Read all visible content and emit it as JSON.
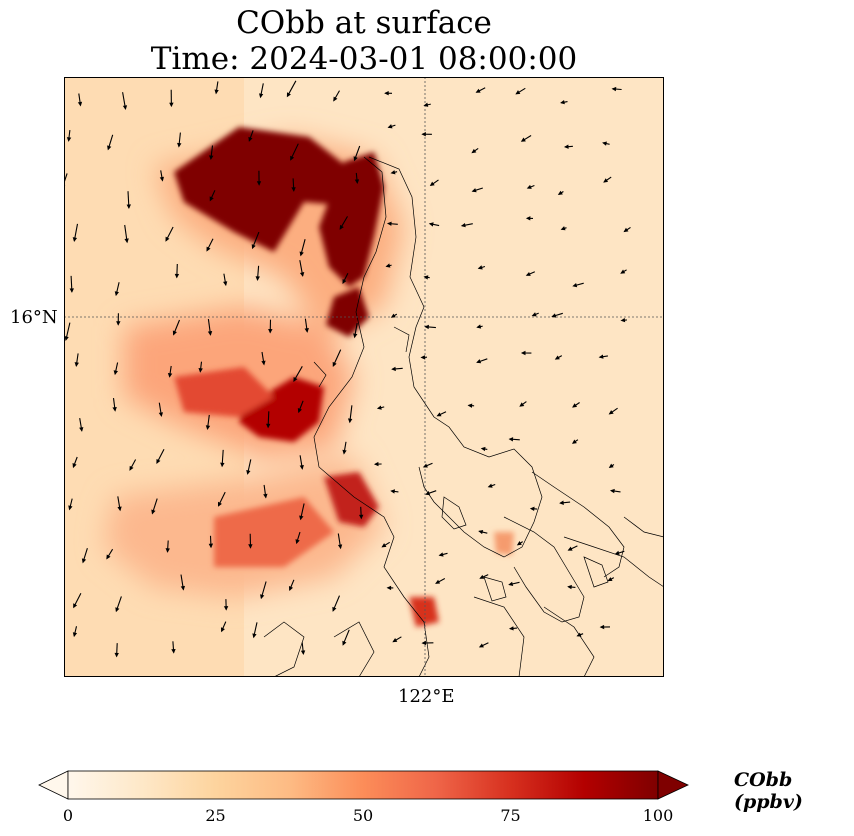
{
  "title_line1": "CObb at surface",
  "title_line2": "Time: 2024-03-01 08:00:00",
  "lat_tick": "16°N",
  "lon_tick": "122°E",
  "colorbar": {
    "label": "CObb (ppbv)",
    "ticks": [
      "0",
      "25",
      "50",
      "75",
      "100"
    ],
    "min": 0,
    "max": 100,
    "extend": "both",
    "colormap": [
      "#fff7ec",
      "#fee8c8",
      "#fdd49e",
      "#fdbb84",
      "#fc8d59",
      "#ef6548",
      "#d7301f",
      "#b30000",
      "#7f0000"
    ]
  },
  "chart_data": {
    "type": "heatmap",
    "title": "CObb at surface Time: 2024-03-01 08:00:00",
    "variable": "CObb",
    "units": "ppbv",
    "value_range": [
      0,
      100
    ],
    "gridlines": {
      "lat": "16°N",
      "lon": "122°E",
      "style": "dotted"
    },
    "features": [
      "coastlines",
      "wind vectors"
    ]
  }
}
